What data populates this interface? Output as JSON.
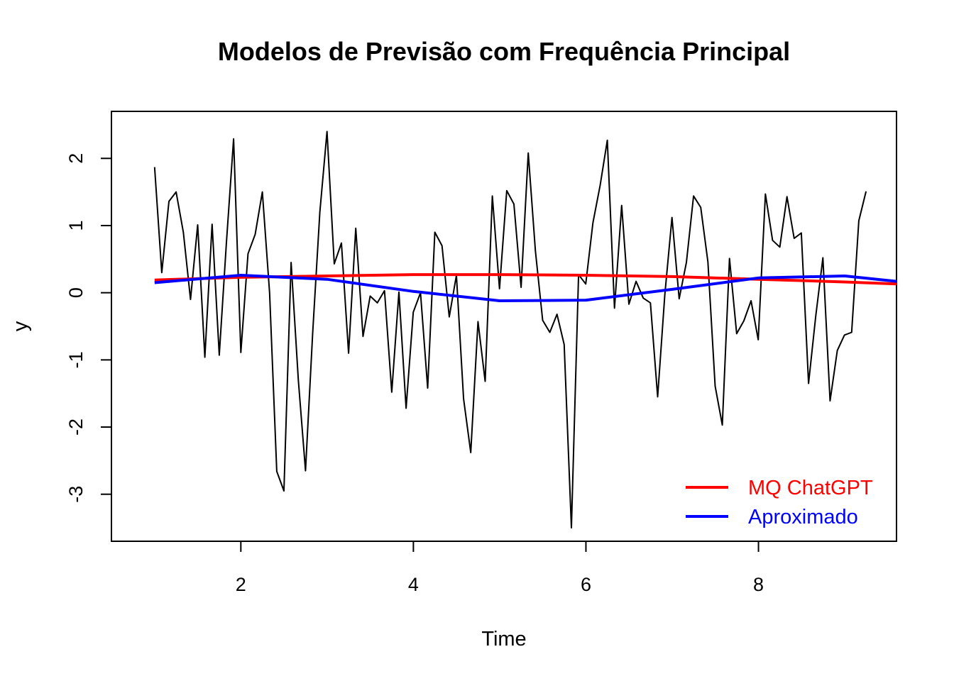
{
  "chart_data": {
    "type": "line",
    "title": "Modelos de Previsão com Frequência Principal",
    "xlabel": "Time",
    "ylabel": "y",
    "xlim": [
      0.5,
      9.6
    ],
    "ylim": [
      -3.7,
      2.7
    ],
    "x_ticks": [
      2,
      4,
      6,
      8
    ],
    "y_ticks": [
      -3,
      -2,
      -1,
      0,
      1,
      2
    ],
    "grid": false,
    "legend_position": "bottom-right",
    "series": [
      {
        "name": "",
        "color": "#000000",
        "x_start": 1,
        "x_step": 0.0833,
        "values": [
          1.87,
          0.3,
          1.36,
          1.5,
          0.9,
          -0.1,
          1.01,
          -0.96,
          1.02,
          -0.93,
          0.75,
          2.29,
          -0.89,
          0.58,
          0.87,
          1.5,
          0.0,
          -2.66,
          -2.95,
          0.45,
          -1.3,
          -2.65,
          -0.6,
          1.2,
          2.4,
          0.43,
          0.74,
          -0.9,
          0.96,
          -0.65,
          -0.05,
          -0.15,
          0.03,
          -1.48,
          0.01,
          -1.72,
          -0.29,
          0.0,
          -1.42,
          0.9,
          0.7,
          -0.36,
          0.26,
          -1.58,
          -2.38,
          -0.43,
          -1.32,
          1.44,
          0.06,
          1.52,
          1.32,
          0.08,
          2.08,
          0.62,
          -0.41,
          -0.59,
          -0.32,
          -0.77,
          -3.5,
          0.27,
          0.13,
          1.04,
          1.6,
          2.27,
          -0.23,
          1.3,
          -0.17,
          0.17,
          -0.08,
          -0.15,
          -1.55,
          -0.03,
          1.12,
          -0.09,
          0.45,
          1.44,
          1.27,
          0.46,
          -1.39,
          -1.97,
          0.51,
          -0.61,
          -0.42,
          -0.12,
          -0.7,
          1.47,
          0.78,
          0.68,
          1.43,
          0.81,
          0.89,
          -1.35,
          -0.35,
          0.52,
          -1.61,
          -0.86,
          -0.63,
          -0.59,
          1.07,
          1.51
        ]
      },
      {
        "name": "MQ ChatGPT",
        "color": "#ff0000",
        "x": [
          1,
          2,
          3,
          4,
          5,
          6,
          7,
          8,
          9,
          9.6
        ],
        "values": [
          0.19,
          0.23,
          0.25,
          0.27,
          0.27,
          0.26,
          0.24,
          0.2,
          0.16,
          0.13
        ]
      },
      {
        "name": "Aproximado",
        "color": "#0000ff",
        "x": [
          1,
          2,
          3,
          4,
          5,
          6,
          7,
          8,
          9,
          9.6
        ],
        "values": [
          0.15,
          0.26,
          0.2,
          0.02,
          -0.12,
          -0.11,
          0.05,
          0.22,
          0.25,
          0.17
        ]
      }
    ]
  }
}
